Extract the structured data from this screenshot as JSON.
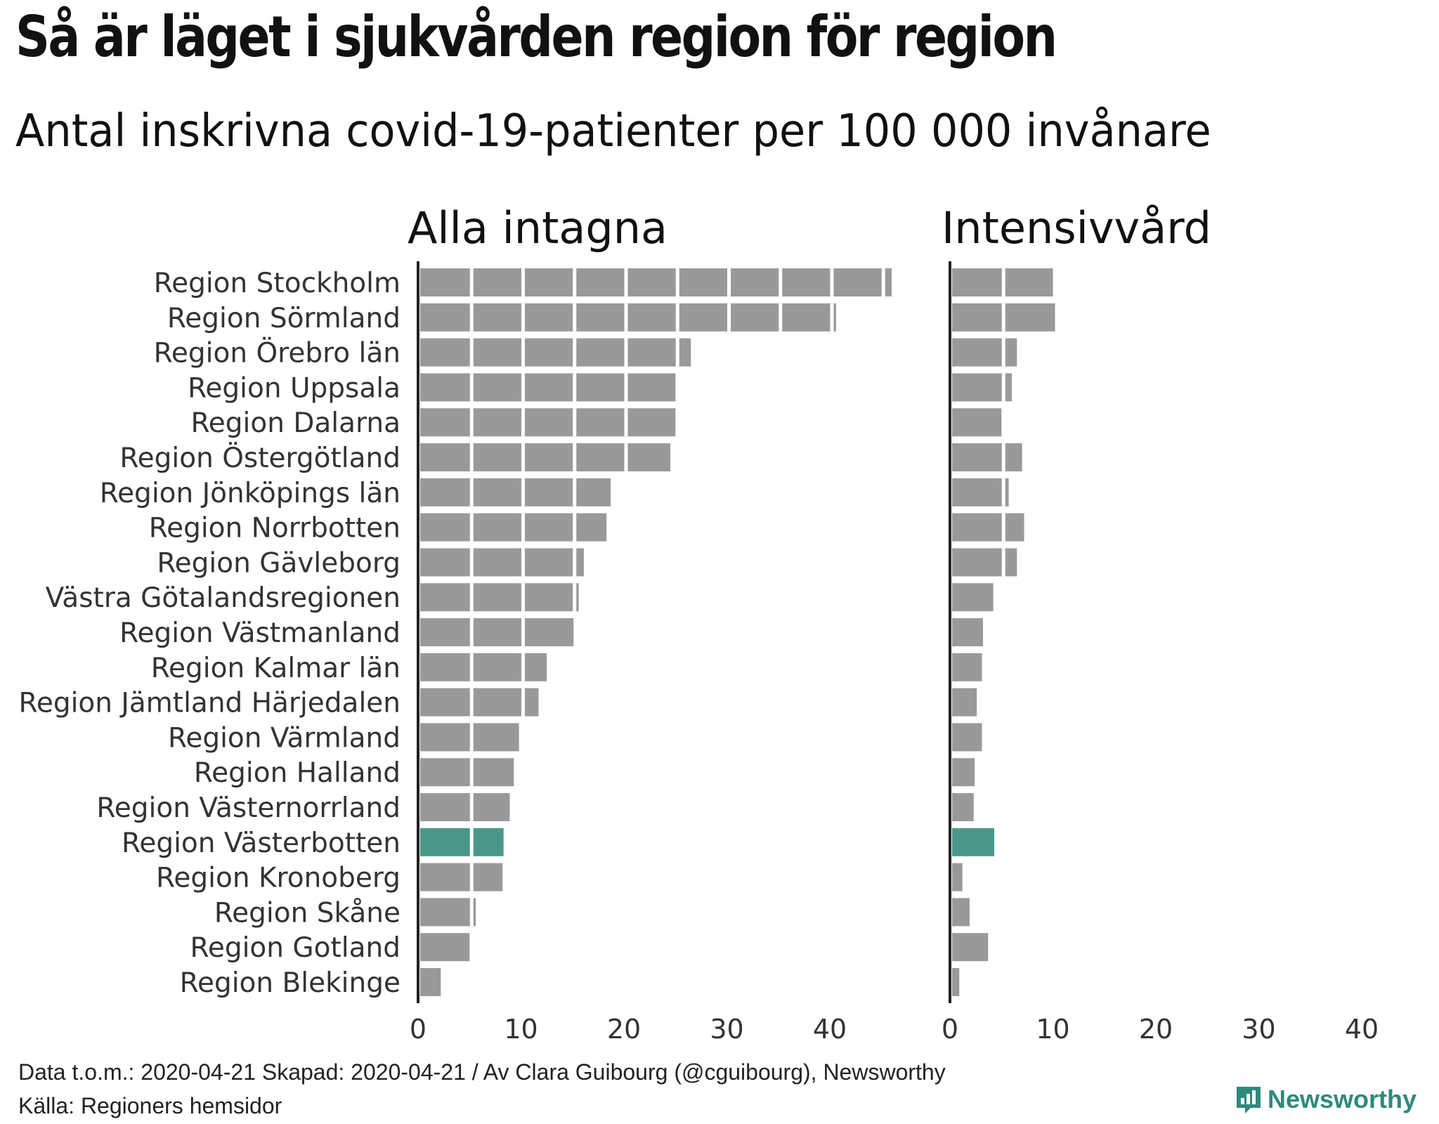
{
  "title": "Så är läget i sjukvården region för region",
  "subtitle": "Antal inskrivna covid-19-patienter per 100 000 invånare",
  "footer": {
    "line1": "Data t.o.m.: 2020-04-21 Skapad: 2020-04-21 / Av Clara Guibourg (@cguibourg), Newsworthy",
    "line2": "Källa: Regioners hemsidor"
  },
  "brand": {
    "name": "Newsworthy",
    "icon": "newsworthy-logo-icon"
  },
  "colors": {
    "bar": "#999999",
    "highlight": "#4a978a",
    "axis": "#222222",
    "text": "#333333",
    "separator": "#ffffff"
  },
  "chart_data": {
    "type": "bar",
    "orientation": "horizontal",
    "categories": [
      "Region Stockholm",
      "Region Sörmland",
      "Region Örebro län",
      "Region Uppsala",
      "Region Dalarna",
      "Region Östergötland",
      "Region Jönköpings län",
      "Region Norrbotten",
      "Region Gävleborg",
      "Västra Götalandsregionen",
      "Region Västmanland",
      "Region Kalmar län",
      "Region Jämtland Härjedalen",
      "Region Värmland",
      "Region Halland",
      "Region Västernorrland",
      "Region Västerbotten",
      "Region Kronoberg",
      "Region Skåne",
      "Region Gotland",
      "Region Blekinge"
    ],
    "highlight": "Region Västerbotten",
    "segment_size": 5,
    "series": [
      {
        "name": "Alla intagna",
        "values": [
          45.8,
          40.4,
          26.3,
          24.8,
          24.8,
          24.3,
          18.5,
          18.1,
          15.9,
          15.4,
          14.9,
          12.3,
          11.5,
          9.6,
          9.1,
          8.7,
          8.1,
          8.0,
          5.4,
          4.8,
          2.0
        ]
      },
      {
        "name": "Intensivvård",
        "values": [
          9.8,
          10.0,
          6.3,
          5.8,
          4.8,
          6.8,
          5.5,
          7.0,
          6.3,
          4.0,
          3.0,
          2.9,
          2.4,
          2.9,
          2.2,
          2.1,
          4.1,
          1.0,
          1.7,
          3.5,
          0.7
        ]
      }
    ],
    "xlim": [
      0,
      48
    ],
    "xticks": [
      0,
      10,
      20,
      30,
      40
    ],
    "xtick_labels": [
      "0",
      "10",
      "20",
      "30",
      "40"
    ],
    "grid": false,
    "legend": "none"
  }
}
